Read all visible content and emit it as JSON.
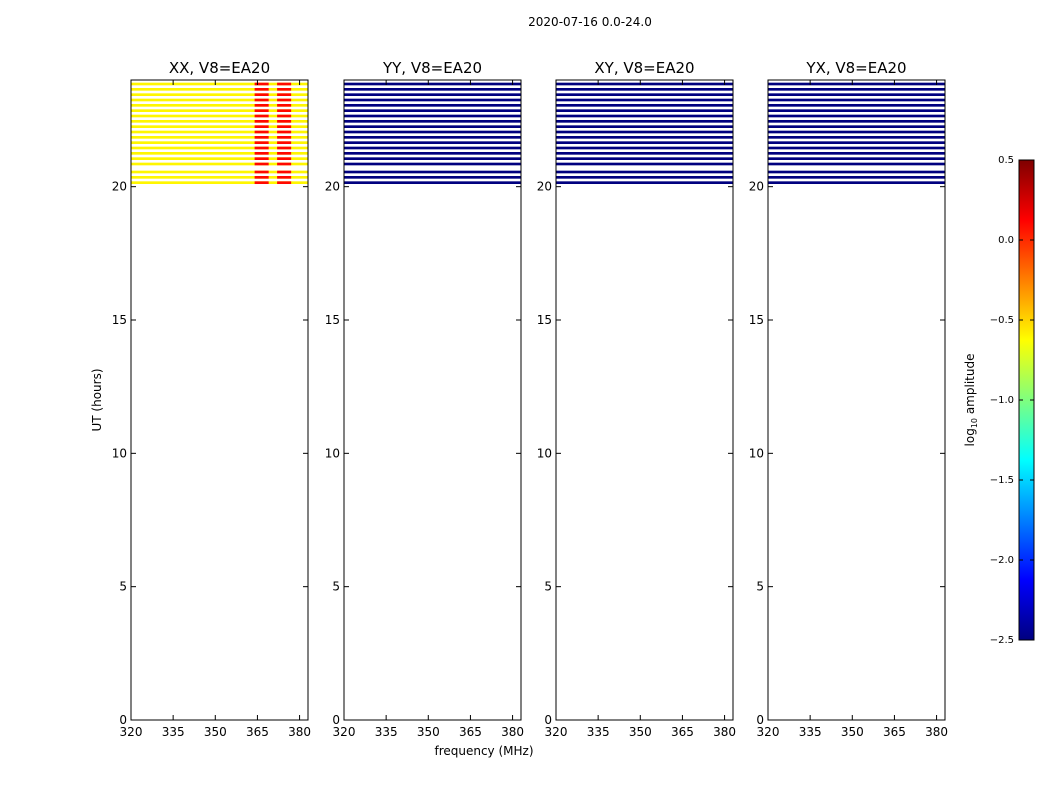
{
  "chart_data": {
    "type": "heatmap",
    "suptitle": "2020-07-16 0.0-24.0",
    "xlabel": "frequency (MHz)",
    "ylabel": "UT (hours)",
    "xlim": [
      320,
      383
    ],
    "ylim": [
      0,
      24
    ],
    "xticks": [
      320,
      335,
      350,
      365,
      380
    ],
    "yticks": [
      0,
      5,
      10,
      15,
      20
    ],
    "colorbar": {
      "label": "log10 amplitude",
      "label_main": "log",
      "label_sub": "10",
      "label_rest": " amplitude",
      "vmin": -2.5,
      "vmax": 0.5,
      "ticks": [
        0.5,
        0.0,
        -0.5,
        -1.0,
        -1.5,
        -2.0,
        -2.5
      ],
      "tick_labels": [
        "0.5",
        "0.0",
        "−0.5",
        "−1.0",
        "−1.5",
        "−2.0",
        "−2.5"
      ],
      "colormap": [
        "#00007f",
        "#0000ff",
        "#007fff",
        "#00ffff",
        "#7fff7f",
        "#ffff00",
        "#ff7f00",
        "#ff0000",
        "#7f0000"
      ]
    },
    "data_rows_ut": [
      20.1,
      20.3,
      20.5,
      20.8,
      21.0,
      21.2,
      21.4,
      21.6,
      21.8,
      22.0,
      22.2,
      22.4,
      22.6,
      22.8,
      23.0,
      23.2,
      23.4,
      23.6,
      23.8
    ],
    "panels": [
      {
        "title": "XX, V8=EA20",
        "level": -0.6,
        "hot_freq_ranges": [
          [
            364,
            369
          ],
          [
            372,
            377
          ]
        ],
        "hot_level": 0.1
      },
      {
        "title": "YY, V8=EA20",
        "level": -2.5,
        "hot_freq_ranges": [],
        "hot_level": -2.5
      },
      {
        "title": "XY, V8=EA20",
        "level": -2.5,
        "hot_freq_ranges": [],
        "hot_level": -2.5
      },
      {
        "title": "YX, V8=EA20",
        "level": -2.5,
        "hot_freq_ranges": [],
        "hot_level": -2.5
      }
    ]
  }
}
